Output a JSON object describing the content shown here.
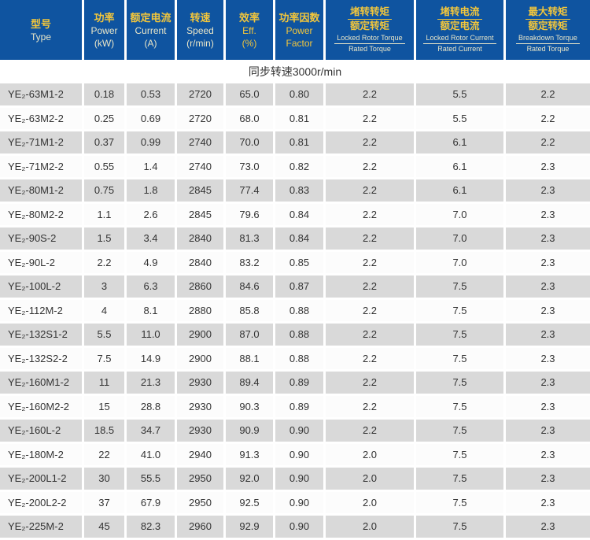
{
  "colors": {
    "header_bg": "#0f54a0",
    "header_cn": "#f2c63c",
    "header_en_pale": "#e9e6c8",
    "row_gray": "#d9d9d9",
    "row_white": "#fcfcfc",
    "body_text": "#333333"
  },
  "table": {
    "section_label": "同步转速3000r/min",
    "columns": [
      {
        "id": "type",
        "style": "simple",
        "cn": "型号",
        "en": [
          "Type"
        ],
        "en_tone": "pale"
      },
      {
        "id": "power",
        "style": "simple",
        "cn": "功率",
        "en": [
          "Power",
          "(kW)"
        ],
        "en_tone": "pale"
      },
      {
        "id": "current",
        "style": "simple",
        "cn": "额定电流",
        "en": [
          "Current",
          "(A)"
        ],
        "en_tone": "pale"
      },
      {
        "id": "speed",
        "style": "simple",
        "cn": "转速",
        "en": [
          "Speed",
          "(r/min)"
        ],
        "en_tone": "pale"
      },
      {
        "id": "eff",
        "style": "simple",
        "cn": "效率",
        "en": [
          "Eff.",
          "(%)"
        ],
        "en_tone": "gold"
      },
      {
        "id": "pf",
        "style": "simple",
        "cn": "功率因数",
        "en": [
          "Power",
          "Factor"
        ],
        "en_tone": "gold"
      },
      {
        "id": "lrt",
        "style": "fraction",
        "cn_num": "堵转转矩",
        "cn_den": "额定转矩",
        "en_num": "Locked Rotor Torque",
        "en_den": "Rated Torque"
      },
      {
        "id": "lrc",
        "style": "fraction",
        "cn_num": "堵转电流",
        "cn_den": "额定电流",
        "en_num": "Locked Rotor Current",
        "en_den": "Rated Current"
      },
      {
        "id": "bt",
        "style": "fraction",
        "cn_num": "最大转矩",
        "cn_den": "额定转矩",
        "en_num": "Breakdown Torque",
        "en_den": "Rated Torque"
      }
    ],
    "rows": [
      [
        "YE₂-63M1-2",
        "0.18",
        "0.53",
        "2720",
        "65.0",
        "0.80",
        "2.2",
        "5.5",
        "2.2"
      ],
      [
        "YE₂-63M2-2",
        "0.25",
        "0.69",
        "2720",
        "68.0",
        "0.81",
        "2.2",
        "5.5",
        "2.2"
      ],
      [
        "YE₂-71M1-2",
        "0.37",
        "0.99",
        "2740",
        "70.0",
        "0.81",
        "2.2",
        "6.1",
        "2.2"
      ],
      [
        "YE₂-71M2-2",
        "0.55",
        "1.4",
        "2740",
        "73.0",
        "0.82",
        "2.2",
        "6.1",
        "2.3"
      ],
      [
        "YE₂-80M1-2",
        "0.75",
        "1.8",
        "2845",
        "77.4",
        "0.83",
        "2.2",
        "6.1",
        "2.3"
      ],
      [
        "YE₂-80M2-2",
        "1.1",
        "2.6",
        "2845",
        "79.6",
        "0.84",
        "2.2",
        "7.0",
        "2.3"
      ],
      [
        "YE₂-90S-2",
        "1.5",
        "3.4",
        "2840",
        "81.3",
        "0.84",
        "2.2",
        "7.0",
        "2.3"
      ],
      [
        "YE₂-90L-2",
        "2.2",
        "4.9",
        "2840",
        "83.2",
        "0.85",
        "2.2",
        "7.0",
        "2.3"
      ],
      [
        "YE₂-100L-2",
        "3",
        "6.3",
        "2860",
        "84.6",
        "0.87",
        "2.2",
        "7.5",
        "2.3"
      ],
      [
        "YE₂-112M-2",
        "4",
        "8.1",
        "2880",
        "85.8",
        "0.88",
        "2.2",
        "7.5",
        "2.3"
      ],
      [
        "YE₂-132S1-2",
        "5.5",
        "11.0",
        "2900",
        "87.0",
        "0.88",
        "2.2",
        "7.5",
        "2.3"
      ],
      [
        "YE₂-132S2-2",
        "7.5",
        "14.9",
        "2900",
        "88.1",
        "0.88",
        "2.2",
        "7.5",
        "2.3"
      ],
      [
        "YE₂-160M1-2",
        "11",
        "21.3",
        "2930",
        "89.4",
        "0.89",
        "2.2",
        "7.5",
        "2.3"
      ],
      [
        "YE₂-160M2-2",
        "15",
        "28.8",
        "2930",
        "90.3",
        "0.89",
        "2.2",
        "7.5",
        "2.3"
      ],
      [
        "YE₂-160L-2",
        "18.5",
        "34.7",
        "2930",
        "90.9",
        "0.90",
        "2.2",
        "7.5",
        "2.3"
      ],
      [
        "YE₂-180M-2",
        "22",
        "41.0",
        "2940",
        "91.3",
        "0.90",
        "2.0",
        "7.5",
        "2.3"
      ],
      [
        "YE₂-200L1-2",
        "30",
        "55.5",
        "2950",
        "92.0",
        "0.90",
        "2.0",
        "7.5",
        "2.3"
      ],
      [
        "YE₂-200L2-2",
        "37",
        "67.9",
        "2950",
        "92.5",
        "0.90",
        "2.0",
        "7.5",
        "2.3"
      ],
      [
        "YE₂-225M-2",
        "45",
        "82.3",
        "2960",
        "92.9",
        "0.90",
        "2.0",
        "7.5",
        "2.3"
      ]
    ]
  }
}
